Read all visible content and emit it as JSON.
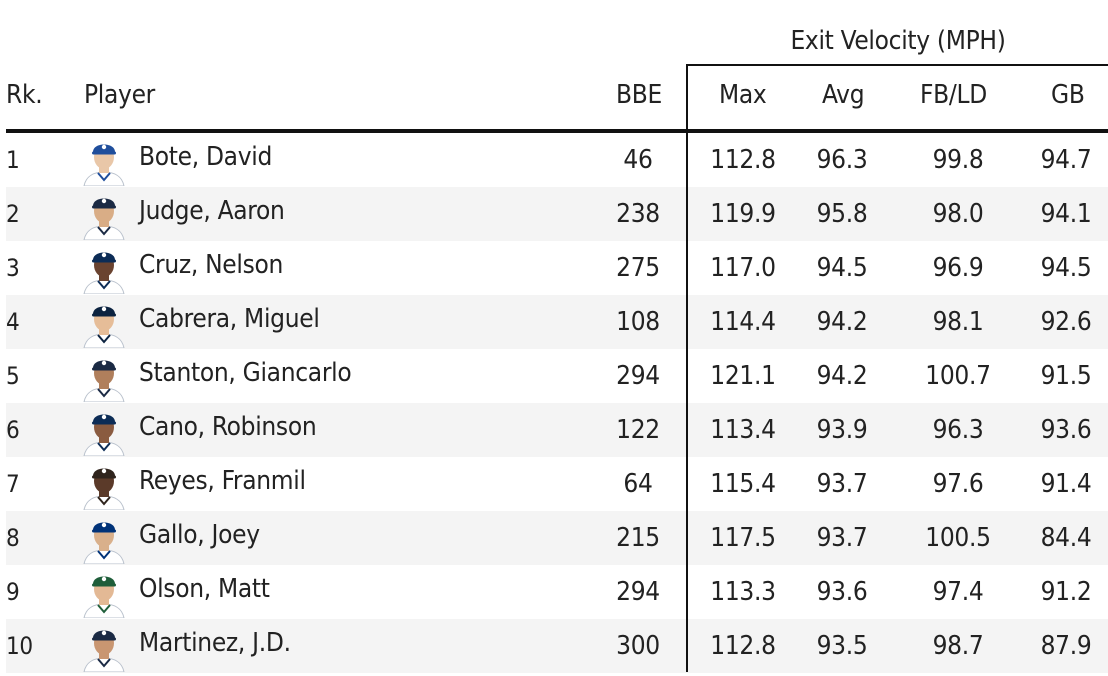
{
  "group_header": "Exit Velocity (MPH)",
  "columns": {
    "rank": "Rk.",
    "player": "Player",
    "bbe": "BBE",
    "max": "Max",
    "avg": "Avg",
    "fbld": "FB/LD",
    "gb": "GB"
  },
  "rows": [
    {
      "rank": "1",
      "player": "Bote, David",
      "bbe": "46",
      "max": "112.8",
      "avg": "96.3",
      "fbld": "99.8",
      "gb": "94.7",
      "cap_color": "#1f4e9c",
      "skin": "#e9c7a8",
      "jersey": "#ffffff"
    },
    {
      "rank": "2",
      "player": "Judge, Aaron",
      "bbe": "238",
      "max": "119.9",
      "avg": "95.8",
      "fbld": "98.0",
      "gb": "94.1",
      "cap_color": "#1b2a44",
      "skin": "#d9ad86",
      "jersey": "#ffffff"
    },
    {
      "rank": "3",
      "player": "Cruz, Nelson",
      "bbe": "275",
      "max": "117.0",
      "avg": "94.5",
      "fbld": "96.9",
      "gb": "94.5",
      "cap_color": "#0c2c56",
      "skin": "#6a4330",
      "jersey": "#ffffff"
    },
    {
      "rank": "4",
      "player": "Cabrera, Miguel",
      "bbe": "108",
      "max": "114.4",
      "avg": "94.2",
      "fbld": "98.1",
      "gb": "92.6",
      "cap_color": "#0c2340",
      "skin": "#e6bd98",
      "jersey": "#ffffff"
    },
    {
      "rank": "5",
      "player": "Stanton, Giancarlo",
      "bbe": "294",
      "max": "121.1",
      "avg": "94.2",
      "fbld": "100.7",
      "gb": "91.5",
      "cap_color": "#1b2a44",
      "skin": "#b07f5c",
      "jersey": "#ffffff"
    },
    {
      "rank": "6",
      "player": "Cano, Robinson",
      "bbe": "122",
      "max": "113.4",
      "avg": "93.9",
      "fbld": "96.3",
      "gb": "93.6",
      "cap_color": "#0c2c56",
      "skin": "#8a5b40",
      "jersey": "#ffffff"
    },
    {
      "rank": "7",
      "player": "Reyes, Franmil",
      "bbe": "64",
      "max": "115.4",
      "avg": "93.7",
      "fbld": "97.6",
      "gb": "91.4",
      "cap_color": "#2f241d",
      "skin": "#5b3a29",
      "jersey": "#ffffff"
    },
    {
      "rank": "8",
      "player": "Gallo, Joey",
      "bbe": "215",
      "max": "117.5",
      "avg": "93.7",
      "fbld": "100.5",
      "gb": "84.4",
      "cap_color": "#003278",
      "skin": "#d9b08b",
      "jersey": "#ffffff"
    },
    {
      "rank": "9",
      "player": "Olson, Matt",
      "bbe": "294",
      "max": "113.3",
      "avg": "93.6",
      "fbld": "97.4",
      "gb": "91.2",
      "cap_color": "#1f5e3a",
      "skin": "#e3b995",
      "jersey": "#ffffff"
    },
    {
      "rank": "10",
      "player": "Martinez, J.D.",
      "bbe": "300",
      "max": "112.8",
      "avg": "93.5",
      "fbld": "98.7",
      "gb": "87.9",
      "cap_color": "#1b2a44",
      "skin": "#c99671",
      "jersey": "#ffffff"
    }
  ]
}
